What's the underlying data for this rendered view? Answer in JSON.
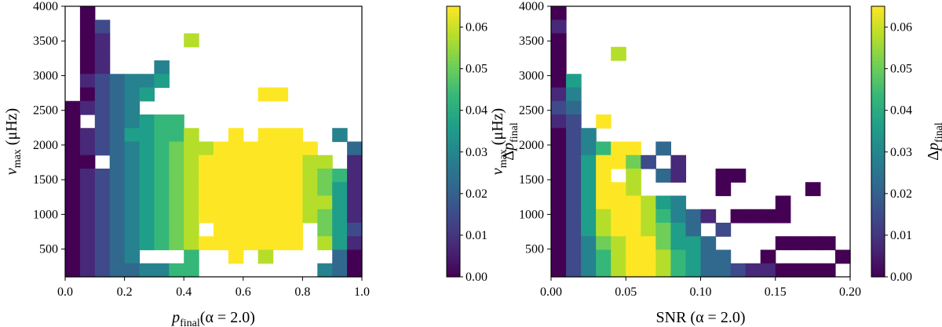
{
  "colors": {
    "viridis": [
      "#440154",
      "#482878",
      "#3e4a89",
      "#31688e",
      "#26828e",
      "#1f9e89",
      "#35b779",
      "#6ece58",
      "#b5de2b",
      "#fde725"
    ],
    "axis": "#000000"
  },
  "chart_data": [
    {
      "type": "heatmap",
      "name": "left",
      "xlabel": "p_final (α = 2.0)",
      "xlabel_main": "p",
      "xlabel_sub": "final",
      "xlabel_cond": "(α = 2.0)",
      "ylabel": "ν_max (μHz)",
      "ylabel_main": "ν",
      "ylabel_sub": "max",
      "ylabel_unit": "(μHz)",
      "colorbar_label": "Δp_final",
      "xlim": [
        0,
        1
      ],
      "ylim": [
        100,
        4000
      ],
      "x_ticks": [
        0.0,
        0.2,
        0.4,
        0.6,
        0.8,
        1.0
      ],
      "x_tick_labels": [
        "0.0",
        "0.2",
        "0.4",
        "0.6",
        "0.8",
        "1.0"
      ],
      "y_ticks": [
        500,
        1000,
        1500,
        2000,
        2500,
        3000,
        3500,
        4000
      ],
      "y_tick_labels": [
        "500",
        "1000",
        "1500",
        "2000",
        "2500",
        "3000",
        "3500",
        "4000"
      ],
      "color_range": [
        0,
        0.065
      ],
      "colorbar_ticks": [
        0.0,
        0.01,
        0.02,
        0.03,
        0.04,
        0.05,
        0.06
      ],
      "colorbar_tick_labels": [
        "0.00",
        "0.01",
        "0.02",
        "0.03",
        "0.04",
        "0.05",
        "0.06"
      ],
      "nx": 20,
      "ny": 20,
      "rows_top_to_bottom": [
        "-  0  -  -  -  -  -  -  -  -  -  -  -  -  -  -  -  -  -  -",
        "-  0  2  -  -  -  -  -  -  -  -  -  -  -  -  -  -  -  -  -",
        "-  0  1  -  -  -  -  -  8  -  -  -  -  -  -  -  -  -  -  -",
        "-  0  1  -  -  -  -  -  -  -  -  -  -  -  -  -  -  -  -  -",
        "-  0  1  -  -  -  4  -  -  -  -  -  -  -  -  -  -  -  -  -",
        "-  1  2  3  4  4  5  -  -  -  -  -  -  -  -  -  -  -  -  -",
        "-  0  2  3  4  5  -  -  -  -  -  -  -  9  9  -  -  -  -  -",
        "0  1  2  3  4  -  -  -  -  -  -  -  -  -  -  -  -  -  -  -",
        "0  -  2  3  4  5  6  6  -  -  -  -  -  -  -  -  -  -  -  -",
        "0  1  2  3  5  5  6  6  8  -  -  9  -  9  9  9  -  -  4  -",
        "0  1  2  3  4  5  6  7  8  8  9  9  9  9  9  9  9  -  -  3",
        "0  0  -  3  4  5  6  7  8  9  9  9  9  9  9  9  8  8  -  1",
        "0  1  2  3  4  5  6  7  8  9  9  9  9  9  9  9  8  7  6  1",
        "0  1  2  3  4  5  6  7  8  9  9  9  9  9  9  9  8  7  5  1",
        "0  1  2  3  4  5  6  7  8  9  9  9  9  9  9  9  8  8  5  1",
        "0  1  2  3  4  5  6  7  8  9  9  9  9  9  9  9  8  7  5  1",
        "0  1  2  3  4  5  6  7  8  -  9  9  9  9  9  9  -  7  5  2",
        "0  1  2  3  4  5  6  7  8  9  9  9  9  9  9  9  -  8  5  1",
        "0  1  2  3  4  -  -  -  6  -  -  9  -  8  -  -  -  -  3  0",
        "0  1  2  3  3  4  4  6  6  -  -  -  -  -  -  -  -  4  3  0"
      ]
    },
    {
      "type": "heatmap",
      "name": "right",
      "xlabel": "SNR (α = 2.0)",
      "xlabel_main": "SNR",
      "xlabel_cond": "(α = 2.0)",
      "ylabel": "ν_max (μHz)",
      "ylabel_main": "ν",
      "ylabel_sub": "max",
      "ylabel_unit": "(μHz)",
      "colorbar_label": "Δp_final",
      "xlim": [
        0,
        0.2
      ],
      "ylim": [
        100,
        4000
      ],
      "x_ticks": [
        0.0,
        0.05,
        0.1,
        0.15,
        0.2
      ],
      "x_tick_labels": [
        "0.00",
        "0.05",
        "0.10",
        "0.15",
        "0.20"
      ],
      "y_ticks": [
        500,
        1000,
        1500,
        2000,
        2500,
        3000,
        3500,
        4000
      ],
      "y_tick_labels": [
        "500",
        "1000",
        "1500",
        "2000",
        "2500",
        "3000",
        "3500",
        "4000"
      ],
      "color_range": [
        0,
        0.065
      ],
      "colorbar_ticks": [
        0.0,
        0.01,
        0.02,
        0.03,
        0.04,
        0.05,
        0.06
      ],
      "colorbar_tick_labels": [
        "0.00",
        "0.01",
        "0.02",
        "0.03",
        "0.04",
        "0.05",
        "0.06"
      ],
      "nx": 20,
      "ny": 20,
      "rows_top_to_bottom": [
        "0  -  -  -  -  -  -  -  -  -  -  -  -  -  -  -  -  -  -  -",
        "1  -  -  -  -  -  -  -  -  -  -  -  -  -  -  -  -  -  -  -",
        "0  -  -  -  -  -  -  -  -  -  -  -  -  -  -  -  -  -  -  -",
        "0  -  -  -  8  -  -  -  -  -  -  -  -  -  -  -  -  -  -  -",
        "0  -  -  -  -  -  -  -  -  -  -  -  -  -  -  -  -  -  -  -",
        "0  5  -  -  -  -  -  -  -  -  -  -  -  -  -  -  -  -  -  -",
        "1  4  -  -  -  -  -  -  -  -  -  -  -  -  -  -  -  -  -  -",
        "2  3  -  -  -  -  -  -  -  -  -  -  -  -  -  -  -  -  -  -",
        "1  2  -  9  -  -  -  -  -  -  -  -  -  -  -  -  -  -  -  -",
        "0  2  4  -  -  -  -  -  -  -  -  -  -  -  -  -  -  -  -  -",
        "0  2  4  6  9  9  -  3  -  -  -  -  -  -  -  -  -  -  -  -",
        "0  2  5  9  9  7  2  -  1  -  -  -  -  -  -  -  -  -  -  -",
        "0  2  5  9  -  8  -  3  1  -  -  0  0  -  -  -  -  -  -  -",
        "0  2  5  9  9  8  -  -  -  -  -  0  -  -  -  -  -  0  -  -",
        "0  2  5  9  9  9  8  5  4  -  -  -  -  -  -  0  -  -  -  -",
        "0  2  5  8  9  9  8  6  4  3  1  -  0  0  0  0  -  -  -  -",
        "0  2  5  8  9  9  8  7  5  3  -  2  -  -  -  -  -  -  -  -",
        "0  2  4  7  8  9  9  7  5  5  3  -  -  -  -  0  0  0  0  -",
        "0  2  4  6  8  9  9  8  6  5  3  3  -  -  0  -  -  -  -  0",
        "0  2  4  6  8  9  9  8  6  5  3  3  2  1  1  0  0  0  0  -"
      ]
    }
  ]
}
